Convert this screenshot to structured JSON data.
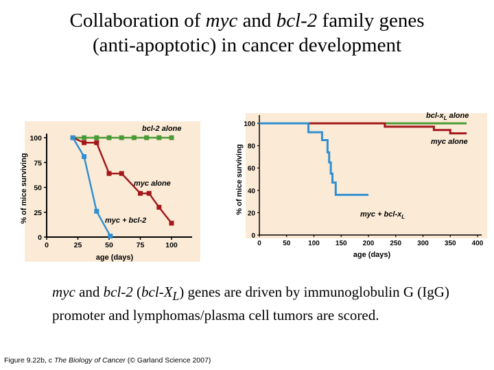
{
  "title": {
    "line1_pre": "Collaboration of ",
    "line1_gene1": "myc",
    "line1_mid": " and ",
    "line1_gene2": "bcl-2",
    "line1_post": " family genes",
    "line2": "(anti-apoptotic) in cancer development"
  },
  "caption": {
    "gene1": "myc",
    "text1": " and ",
    "gene2": "bcl-2",
    "text2": " (",
    "gene3": "bcl-X",
    "gene3_sub": "L",
    "text3": ") genes are driven by immunoglobulin G (IgG) promoter and lymphomas/plasma cell tumors are scored."
  },
  "credit": {
    "prefix": "Figure 9.22b, c ",
    "book": "The Biology of Cancer",
    "suffix": " (© Garland Science 2007)"
  },
  "colors": {
    "panel_bg": "#fbebd6",
    "green": "#4c9a35",
    "red": "#a3171b",
    "blue": "#2f8fd2",
    "axis": "#000000"
  },
  "chart_data": [
    {
      "type": "line",
      "panel": "b",
      "xlabel": "age (days)",
      "ylabel": "% of mice surviving",
      "xlim": [
        0,
        115
      ],
      "ylim": [
        0,
        105
      ],
      "xticks": [
        0,
        25,
        50,
        75,
        100
      ],
      "yticks": [
        0,
        25,
        50,
        75,
        100
      ],
      "series": [
        {
          "name": "bcl-2 alone",
          "color_key": "green",
          "marker": "square",
          "x": [
            21,
            30,
            40,
            50,
            60,
            70,
            80,
            90,
            100
          ],
          "y": [
            100,
            100,
            100,
            100,
            100,
            100,
            100,
            100,
            100
          ]
        },
        {
          "name": "myc alone",
          "color_key": "red",
          "marker": "square",
          "x": [
            21,
            30,
            40,
            50,
            60,
            75,
            82,
            90,
            100
          ],
          "y": [
            100,
            95,
            95,
            64,
            64,
            44,
            44,
            30,
            14
          ]
        },
        {
          "name": "myc + bcl-2",
          "color_key": "blue",
          "marker": "square",
          "x": [
            21,
            30,
            40,
            51
          ],
          "y": [
            100,
            81,
            26,
            1
          ]
        }
      ],
      "annotations": [
        {
          "text": "bcl-2 alone",
          "series": "bcl-2 alone"
        },
        {
          "text": "myc alone",
          "series": "myc alone"
        },
        {
          "text": "myc + bcl-2",
          "series": "myc + bcl-2"
        }
      ]
    },
    {
      "type": "line",
      "panel": "c",
      "step": true,
      "xlabel": "age (days)",
      "ylabel": "% of mice surviving",
      "xlim": [
        0,
        400
      ],
      "ylim": [
        0,
        105
      ],
      "xticks": [
        0,
        50,
        100,
        150,
        200,
        250,
        300,
        350,
        400
      ],
      "yticks": [
        0,
        20,
        40,
        60,
        80,
        100
      ],
      "series": [
        {
          "name": "bcl-xL alone",
          "color_key": "green",
          "x": [
            0,
            380
          ],
          "y": [
            100,
            100
          ]
        },
        {
          "name": "myc alone",
          "color_key": "red",
          "x": [
            0,
            230,
            320,
            350,
            380
          ],
          "y": [
            100,
            97,
            94,
            91,
            91
          ]
        },
        {
          "name": "myc + bcl-xL",
          "color_key": "blue",
          "x": [
            0,
            90,
            115,
            125,
            128,
            131,
            134,
            140,
            200
          ],
          "y": [
            100,
            92,
            85,
            74,
            65,
            55,
            47,
            36,
            36
          ]
        }
      ],
      "annotations": [
        {
          "text": "bcl-x",
          "sub": "L",
          "suffix": " alone",
          "series": "bcl-xL alone"
        },
        {
          "text": "myc alone",
          "series": "myc alone"
        },
        {
          "text": "myc + bcl-x",
          "sub": "L",
          "series": "myc + bcl-xL"
        }
      ]
    }
  ]
}
